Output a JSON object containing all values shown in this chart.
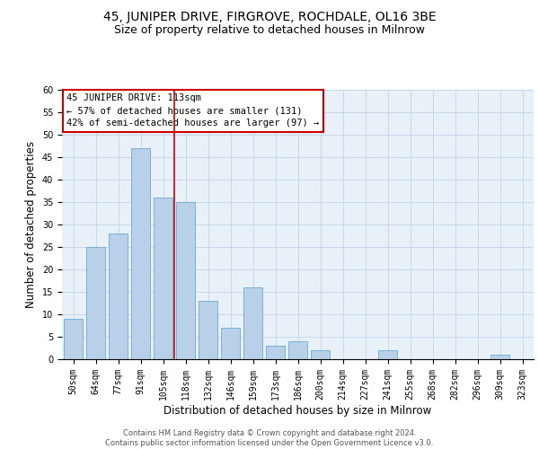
{
  "title1": "45, JUNIPER DRIVE, FIRGROVE, ROCHDALE, OL16 3BE",
  "title2": "Size of property relative to detached houses in Milnrow",
  "xlabel": "Distribution of detached houses by size in Milnrow",
  "ylabel": "Number of detached properties",
  "bar_labels": [
    "50sqm",
    "64sqm",
    "77sqm",
    "91sqm",
    "105sqm",
    "118sqm",
    "132sqm",
    "146sqm",
    "159sqm",
    "173sqm",
    "186sqm",
    "200sqm",
    "214sqm",
    "227sqm",
    "241sqm",
    "255sqm",
    "268sqm",
    "282sqm",
    "296sqm",
    "309sqm",
    "323sqm"
  ],
  "bar_values": [
    9,
    25,
    28,
    47,
    36,
    35,
    13,
    7,
    16,
    3,
    4,
    2,
    0,
    0,
    2,
    0,
    0,
    0,
    0,
    1,
    0
  ],
  "bar_color": "#b8d0e8",
  "bar_edge_color": "#6aaad4",
  "grid_color": "#c8d8ea",
  "background_color": "#e8f0f8",
  "vline_x": 4.5,
  "vline_color": "#cc0000",
  "annotation_line1": "45 JUNIPER DRIVE: 113sqm",
  "annotation_line2": "← 57% of detached houses are smaller (131)",
  "annotation_line3": "42% of semi-detached houses are larger (97) →",
  "annotation_box_color": "#cc0000",
  "ylim": [
    0,
    60
  ],
  "yticks": [
    0,
    5,
    10,
    15,
    20,
    25,
    30,
    35,
    40,
    45,
    50,
    55,
    60
  ],
  "footer_text": "Contains HM Land Registry data © Crown copyright and database right 2024.\nContains public sector information licensed under the Open Government Licence v3.0.",
  "title1_fontsize": 10,
  "title2_fontsize": 9,
  "xlabel_fontsize": 8.5,
  "ylabel_fontsize": 8.5,
  "annotation_fontsize": 7.5,
  "tick_fontsize": 7,
  "footer_fontsize": 6
}
